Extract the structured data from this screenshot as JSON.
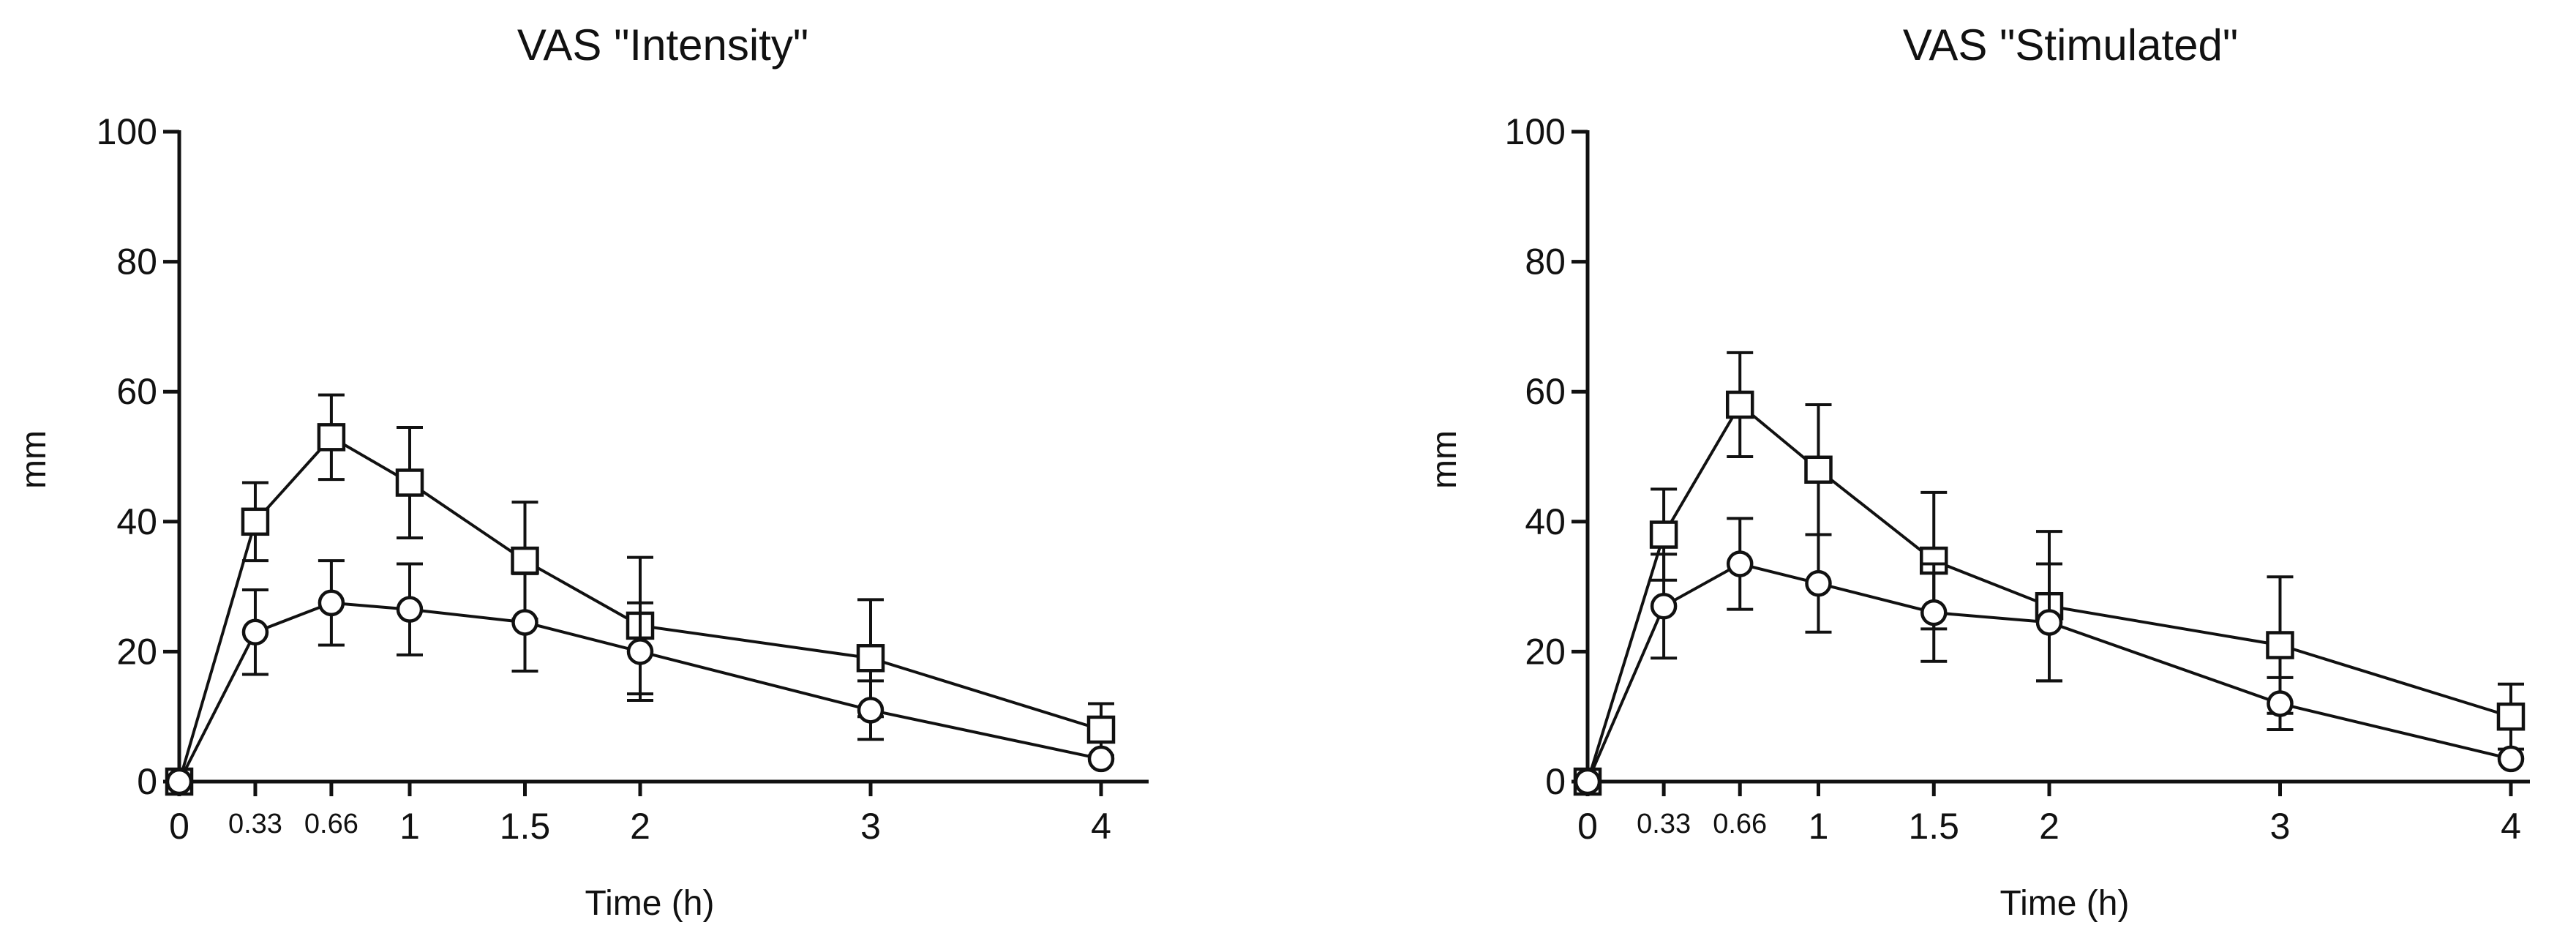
{
  "chart_data": [
    {
      "type": "line",
      "title": "VAS \"Intensity\"",
      "xlabel": "Time (h)",
      "ylabel": "mm",
      "x": [
        0,
        0.33,
        0.66,
        1,
        1.5,
        2,
        3,
        4
      ],
      "x_tick_labels": [
        "0",
        "0.33",
        "0.66",
        "1",
        "1.5",
        "2",
        "3",
        "4"
      ],
      "xlim": [
        0,
        4
      ],
      "ylim": [
        0,
        100
      ],
      "y_ticks": [
        0,
        20,
        40,
        60,
        80,
        100
      ],
      "y_tick_labels": [
        "0",
        "20",
        "40",
        "60",
        "80",
        "100"
      ],
      "grid": false,
      "series": [
        {
          "marker": "square",
          "values": [
            0,
            40,
            53,
            46,
            34,
            24,
            19,
            8
          ],
          "error": [
            0,
            6,
            6.5,
            8.5,
            9,
            10.5,
            9,
            4
          ]
        },
        {
          "marker": "circle",
          "values": [
            0,
            23,
            27.5,
            26.5,
            24.5,
            20,
            11,
            3.5
          ],
          "error": [
            0,
            6.5,
            6.5,
            7,
            7.5,
            7.5,
            4.5,
            0
          ]
        }
      ]
    },
    {
      "type": "line",
      "title": "VAS \"Stimulated\"",
      "xlabel": "Time (h)",
      "ylabel": "mm",
      "x": [
        0,
        0.33,
        0.66,
        1,
        1.5,
        2,
        3,
        4
      ],
      "x_tick_labels": [
        "0",
        "0.33",
        "0.66",
        "1",
        "1.5",
        "2",
        "3",
        "4"
      ],
      "xlim": [
        0,
        4
      ],
      "ylim": [
        0,
        100
      ],
      "y_ticks": [
        0,
        20,
        40,
        60,
        80,
        100
      ],
      "y_tick_labels": [
        "0",
        "20",
        "40",
        "60",
        "80",
        "100"
      ],
      "grid": false,
      "series": [
        {
          "marker": "square",
          "values": [
            0,
            38,
            58,
            48,
            34,
            27,
            21,
            10
          ],
          "error": [
            0,
            7,
            8,
            10,
            10.5,
            11.5,
            10.5,
            5
          ]
        },
        {
          "marker": "circle",
          "values": [
            0,
            27,
            33.5,
            30.5,
            26,
            24.5,
            12,
            3.5
          ],
          "error": [
            0,
            8,
            7,
            7.5,
            7.5,
            9,
            4,
            0
          ]
        }
      ]
    }
  ]
}
